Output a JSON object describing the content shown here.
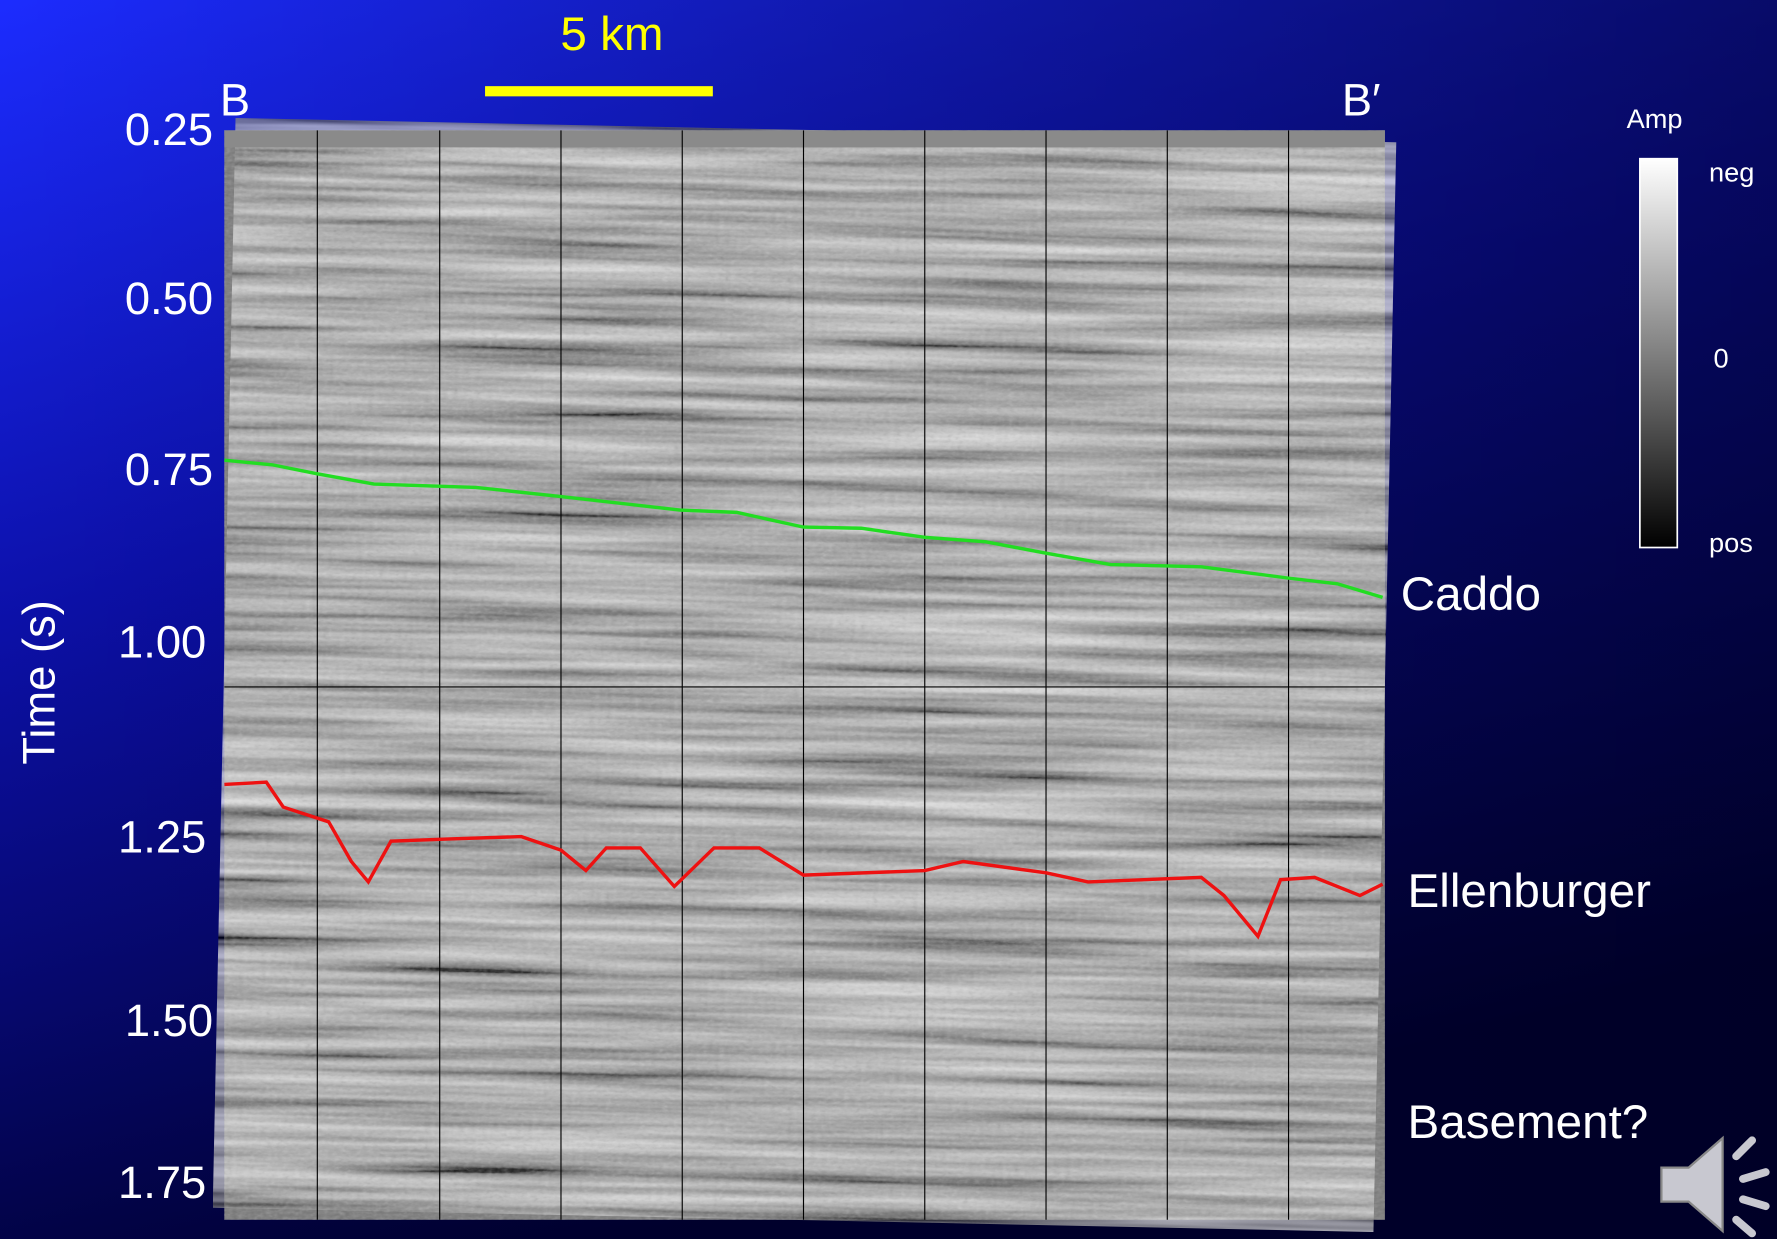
{
  "scale_bar": {
    "label": "5 km"
  },
  "section": {
    "start": "B",
    "end": "B′"
  },
  "y_axis": {
    "title": "Time (s)",
    "ticks": [
      "0.25",
      "0.50",
      "0.75",
      "1.00",
      "1.25",
      "1.50",
      "1.75"
    ]
  },
  "colorbar": {
    "title": "Amp",
    "labels": [
      "neg",
      "0",
      "pos"
    ]
  },
  "horizons": [
    {
      "label": "Caddo"
    },
    {
      "label": "Ellenburger"
    },
    {
      "label": "Basement?"
    }
  ]
}
